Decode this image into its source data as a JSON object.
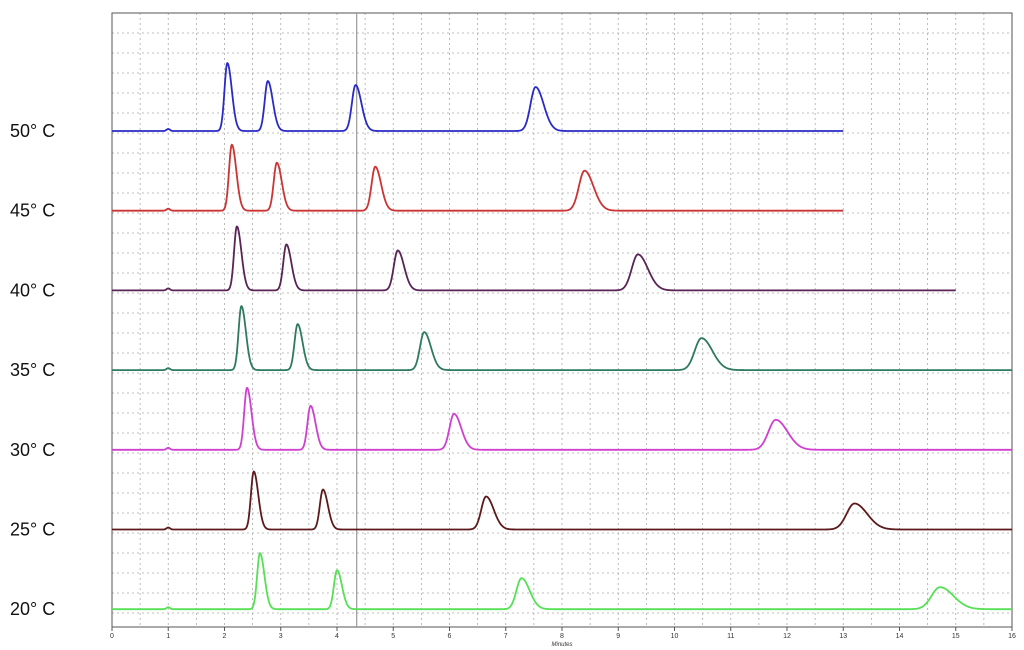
{
  "chart_data": {
    "type": "line",
    "xlabel": "Minutes",
    "xlim": [
      0,
      16
    ],
    "x_ticks": [
      "0",
      "1",
      "2",
      "3",
      "4",
      "5",
      "6",
      "7",
      "8",
      "9",
      "10",
      "11",
      "12",
      "13",
      "14",
      "15",
      "16"
    ],
    "grid": true,
    "cursor_x": 4.35,
    "series": [
      {
        "name": "50° C",
        "color": "#2a2ac8",
        "end": 13.0,
        "tail": 0.5,
        "injection": 1.0,
        "peaks": [
          {
            "rt": 2.05,
            "h": 68,
            "w": 0.05
          },
          {
            "rt": 2.77,
            "h": 50,
            "w": 0.055
          },
          {
            "rt": 4.33,
            "h": 46,
            "w": 0.065
          },
          {
            "rt": 7.53,
            "h": 44,
            "w": 0.09
          }
        ]
      },
      {
        "name": "45° C",
        "color": "#cc3333",
        "end": 13.0,
        "tail": 0.5,
        "injection": 1.0,
        "peaks": [
          {
            "rt": 2.13,
            "h": 66,
            "w": 0.05
          },
          {
            "rt": 2.93,
            "h": 48,
            "w": 0.055
          },
          {
            "rt": 4.68,
            "h": 44,
            "w": 0.065
          },
          {
            "rt": 8.4,
            "h": 40,
            "w": 0.1
          }
        ]
      },
      {
        "name": "40° C",
        "color": "#5a2355",
        "end": 15.0,
        "tail": 0.5,
        "injection": 1.0,
        "peaks": [
          {
            "rt": 2.22,
            "h": 64,
            "w": 0.05
          },
          {
            "rt": 3.1,
            "h": 46,
            "w": 0.055
          },
          {
            "rt": 5.08,
            "h": 40,
            "w": 0.07
          },
          {
            "rt": 9.35,
            "h": 36,
            "w": 0.11
          }
        ]
      },
      {
        "name": "35° C",
        "color": "#2e7a60",
        "end": 16.0,
        "tail": 0.5,
        "injection": 1.0,
        "peaks": [
          {
            "rt": 2.3,
            "h": 64,
            "w": 0.05
          },
          {
            "rt": 3.3,
            "h": 46,
            "w": 0.055
          },
          {
            "rt": 5.55,
            "h": 38,
            "w": 0.075
          },
          {
            "rt": 10.48,
            "h": 32,
            "w": 0.12
          }
        ]
      },
      {
        "name": "30° C",
        "color": "#d040d0",
        "end": 16.0,
        "tail": 0.5,
        "injection": 1.0,
        "peaks": [
          {
            "rt": 2.4,
            "h": 62,
            "w": 0.05
          },
          {
            "rt": 3.53,
            "h": 44,
            "w": 0.055
          },
          {
            "rt": 6.08,
            "h": 36,
            "w": 0.08
          },
          {
            "rt": 11.8,
            "h": 30,
            "w": 0.13
          }
        ]
      },
      {
        "name": "25° C",
        "color": "#5c1a1a",
        "end": 16.0,
        "tail": 0.5,
        "injection": 1.0,
        "peaks": [
          {
            "rt": 2.52,
            "h": 58,
            "w": 0.05
          },
          {
            "rt": 3.75,
            "h": 40,
            "w": 0.055
          },
          {
            "rt": 6.65,
            "h": 33,
            "w": 0.085
          },
          {
            "rt": 13.2,
            "h": 26,
            "w": 0.14
          }
        ]
      },
      {
        "name": "20° C",
        "color": "#55e055",
        "end": 16.0,
        "tail": 0.5,
        "injection": 1.0,
        "peaks": [
          {
            "rt": 2.63,
            "h": 56,
            "w": 0.05
          },
          {
            "rt": 4.0,
            "h": 39,
            "w": 0.055
          },
          {
            "rt": 7.28,
            "h": 31,
            "w": 0.09
          },
          {
            "rt": 14.72,
            "h": 22,
            "w": 0.15
          }
        ]
      }
    ]
  }
}
